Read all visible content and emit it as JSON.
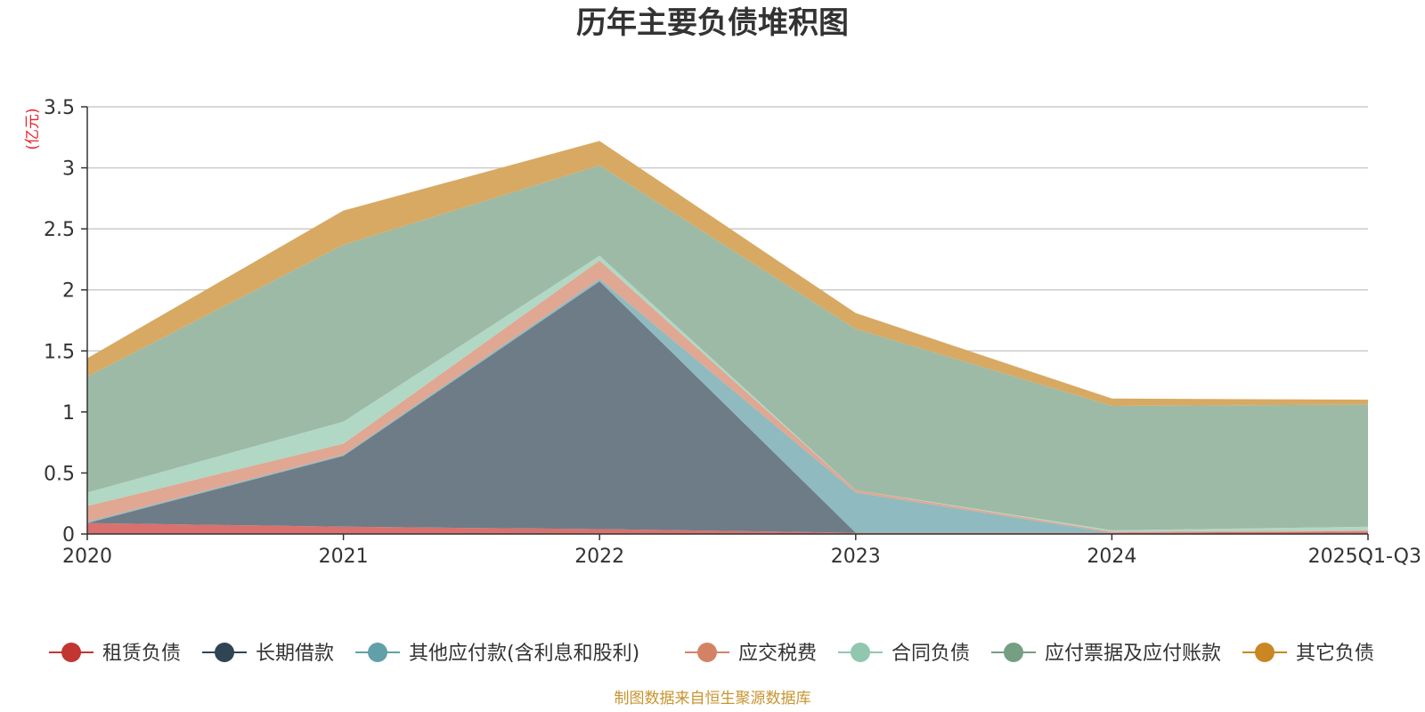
{
  "chart_data": {
    "type": "area",
    "stacked": true,
    "title": "历年主要负债堆积图",
    "ylabel": "(亿元)",
    "ylim": [
      0,
      3.5
    ],
    "yticks": [
      0,
      0.5,
      1,
      1.5,
      2,
      2.5,
      3,
      3.5
    ],
    "ytick_labels": [
      "0",
      "0.5",
      "1",
      "1.5",
      "2",
      "2.5",
      "3",
      "3.5"
    ],
    "categories": [
      "2020",
      "2021",
      "2022",
      "2023",
      "2024",
      "2025Q1-Q3"
    ],
    "grid": true,
    "legend_position": "bottom",
    "series": [
      {
        "name": "租赁负债",
        "color": "#c23531",
        "fill": "#d9716e",
        "values": [
          0.09,
          0.06,
          0.04,
          0.01,
          0.01,
          0.02
        ]
      },
      {
        "name": "长期借款",
        "color": "#2f4554",
        "fill": "#6e7c87",
        "values": [
          0.0,
          0.58,
          2.03,
          0.0,
          0.0,
          0.0
        ]
      },
      {
        "name": "其他应付款(含利息和股利)",
        "color": "#61a0a8",
        "fill": "#8fbac0",
        "values": [
          0.01,
          0.01,
          0.02,
          0.33,
          0.0,
          0.0
        ]
      },
      {
        "name": "应交税费",
        "color": "#d48265",
        "fill": "#e0a793",
        "values": [
          0.13,
          0.09,
          0.15,
          0.02,
          0.01,
          0.01
        ]
      },
      {
        "name": "合同负债",
        "color": "#91c7ae",
        "fill": "#b0d8c5",
        "values": [
          0.11,
          0.18,
          0.04,
          0.0,
          0.01,
          0.03
        ]
      },
      {
        "name": "应付票据及应付账款",
        "color": "#749f83",
        "fill": "#9dbaa6",
        "values": [
          0.95,
          1.45,
          0.74,
          1.32,
          1.02,
          1.0
        ]
      },
      {
        "name": "其它负债",
        "color": "#ca8622",
        "fill": "#d8a962",
        "values": [
          0.15,
          0.28,
          0.2,
          0.13,
          0.06,
          0.04
        ]
      }
    ],
    "source_note": "制图数据来自恒生聚源数据库"
  }
}
